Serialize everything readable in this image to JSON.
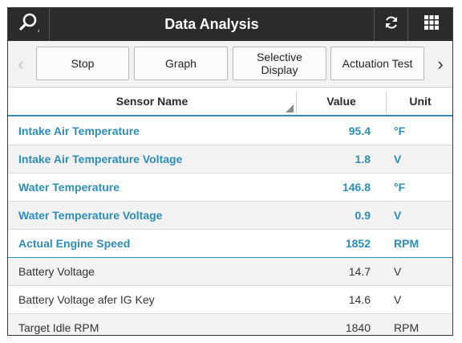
{
  "header": {
    "title": "Data Analysis",
    "search_icon": "search-icon",
    "refresh_icon": "refresh-icon",
    "menu_icon": "grid-menu-icon"
  },
  "toolbar": {
    "prev_label": "‹",
    "next_label": "›",
    "stop_label": "Stop",
    "graph_label": "Graph",
    "selective_display_label": "Selective\nDisplay",
    "actuation_test_label": "Actuation Test"
  },
  "table": {
    "headers": {
      "name": "Sensor Name",
      "value": "Value",
      "unit": "Unit"
    },
    "rows": [
      {
        "name": "Intake Air Temperature",
        "value": "95.4",
        "unit": "°F",
        "selected": true
      },
      {
        "name": "Intake Air Temperature Voltage",
        "value": "1.8",
        "unit": "V",
        "selected": true
      },
      {
        "name": "Water Temperature",
        "value": "146.8",
        "unit": "°F",
        "selected": true
      },
      {
        "name": "Water Temperature Voltage",
        "value": "0.9",
        "unit": "V",
        "selected": true
      },
      {
        "name": "Actual Engine Speed",
        "value": "1852",
        "unit": "RPM",
        "selected": true
      },
      {
        "name": "Battery Voltage",
        "value": "14.7",
        "unit": "V",
        "selected": false
      },
      {
        "name": "Battery Voltage afer IG Key",
        "value": "14.6",
        "unit": "V",
        "selected": false
      },
      {
        "name": "Target Idle RPM",
        "value": "1840",
        "unit": "RPM",
        "selected": false
      }
    ]
  },
  "colors": {
    "titlebar": "#2b2b2b",
    "accent": "#2c8db8",
    "row_alt": "#f2f2f2"
  }
}
